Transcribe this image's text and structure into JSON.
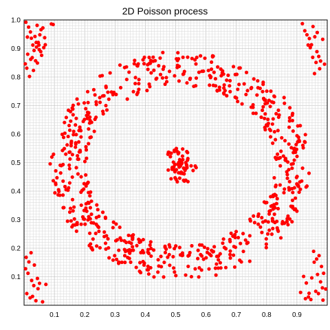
{
  "chart_data": {
    "type": "scatter",
    "title": "2D Poisson process",
    "xlabel": "",
    "ylabel": "",
    "xlim": [
      0,
      1
    ],
    "ylim": [
      0,
      1
    ],
    "x_ticks": [
      "0.1",
      "0.2",
      "0.3",
      "0.4",
      "0.5",
      "0.6",
      "0.7",
      "0.8",
      "0.9"
    ],
    "y_ticks": [
      "0.1",
      "0.2",
      "0.3",
      "0.4",
      "0.5",
      "0.6",
      "0.7",
      "0.8",
      "0.9",
      "1.0"
    ],
    "grid": true,
    "point_color": "#ff0000",
    "series": [
      {
        "x": [
          0.006,
          0.015,
          0.021,
          0.024,
          0.029,
          0.033,
          0.041,
          0.047,
          0.052,
          0.056,
          0.062,
          0.068,
          0.012,
          0.027,
          0.038,
          0.044,
          0.009,
          0.031,
          0.049,
          0.058,
          0.004,
          0.018,
          0.036,
          0.043,
          0.055,
          0.065,
          0.011,
          0.022,
          0.04,
          0.05,
          0.07,
          0.09,
          0.096,
          0.918,
          0.926,
          0.933,
          0.941,
          0.948,
          0.953,
          0.959,
          0.966,
          0.972,
          0.978,
          0.985,
          0.937,
          0.952,
          0.963,
          0.975,
          0.944,
          0.967,
          0.958,
          0.991,
          0.005,
          0.013,
          0.025,
          0.034,
          0.046,
          0.009,
          0.02,
          0.032,
          0.044,
          0.051,
          0.016,
          0.028,
          0.039,
          0.061,
          0.072,
          0.023,
          0.007,
          0.912,
          0.922,
          0.931,
          0.94,
          0.949,
          0.957,
          0.965,
          0.973,
          0.981,
          0.988,
          0.995,
          0.928,
          0.946,
          0.962,
          0.978,
          0.955,
          0.971,
          0.986,
          0.938,
          0.968,
          0.984
        ],
        "y": [
          0.992,
          0.975,
          0.958,
          0.936,
          0.912,
          0.893,
          0.905,
          0.921,
          0.948,
          0.966,
          0.972,
          0.938,
          0.88,
          0.868,
          0.857,
          0.849,
          0.831,
          0.823,
          0.912,
          0.876,
          0.846,
          0.802,
          0.942,
          0.981,
          0.889,
          0.903,
          0.94,
          0.862,
          0.921,
          0.896,
          0.913,
          0.986,
          0.984,
          0.987,
          0.962,
          0.948,
          0.935,
          0.913,
          0.977,
          0.941,
          0.889,
          0.872,
          0.856,
          0.932,
          0.912,
          0.869,
          0.851,
          0.829,
          0.903,
          0.956,
          0.812,
          0.845,
          0.128,
          0.112,
          0.087,
          0.141,
          0.058,
          0.041,
          0.026,
          0.069,
          0.094,
          0.077,
          0.152,
          0.031,
          0.016,
          0.012,
          0.073,
          0.184,
          0.168,
          0.045,
          0.101,
          0.078,
          0.042,
          0.096,
          0.151,
          0.162,
          0.174,
          0.136,
          0.112,
          0.057,
          0.023,
          0.02,
          0.049,
          0.082,
          0.189,
          0.041,
          0.018,
          0.029,
          0.108,
          0.061
        ]
      }
    ],
    "ring": {
      "center": [
        0.515,
        0.49
      ],
      "radius_x": 0.37,
      "radius_y": 0.34,
      "band": 0.06,
      "n_points": 700
    },
    "center_cluster": {
      "center": [
        0.515,
        0.49
      ],
      "spread_x": 0.06,
      "spread_y": 0.07,
      "n_points": 70
    }
  }
}
